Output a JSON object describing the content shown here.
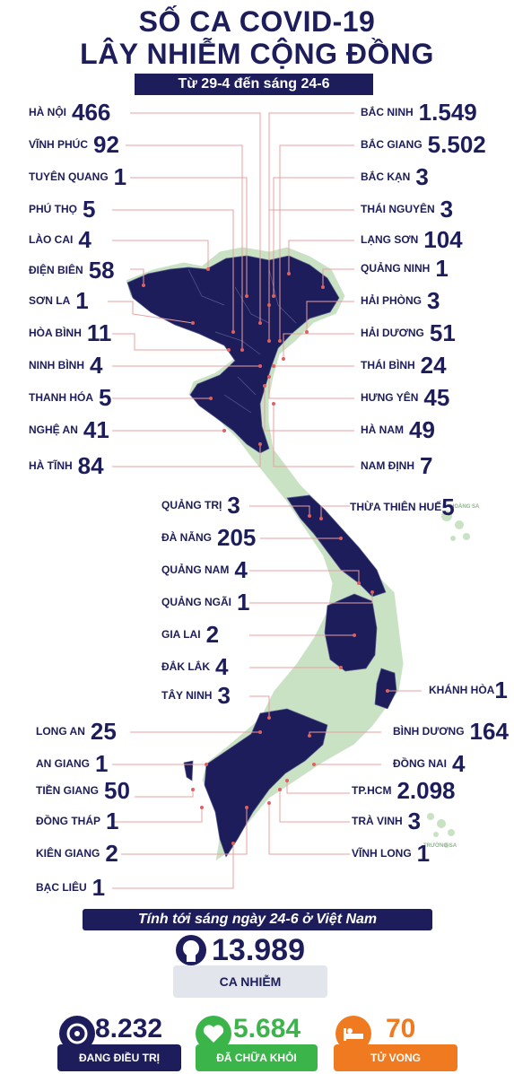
{
  "title_line1": "SỐ CA COVID-19",
  "title_line2": "LÂY NHIỄM CỘNG ĐỒNG",
  "subtitle": "Từ 29-4 đến sáng 24-6",
  "colors": {
    "navy": "#1d1d5b",
    "light_green": "#c9e2c4",
    "orange": "#f07a1f",
    "green": "#3bb54a"
  },
  "left_provinces": [
    {
      "name": "HÀ NỘI",
      "count": "466"
    },
    {
      "name": "VĨNH PHÚC",
      "count": "92"
    },
    {
      "name": "TUYÊN QUANG",
      "count": "1"
    },
    {
      "name": "PHÚ THỌ",
      "count": "5"
    },
    {
      "name": "LÀO CAI",
      "count": "4"
    },
    {
      "name": "ĐIỆN BIÊN",
      "count": "58"
    },
    {
      "name": "SƠN LA",
      "count": "1"
    },
    {
      "name": "HÒA BÌNH",
      "count": "11"
    },
    {
      "name": "NINH BÌNH",
      "count": "4"
    },
    {
      "name": "THANH HÓA",
      "count": "5"
    },
    {
      "name": "NGHỆ AN",
      "count": "41"
    },
    {
      "name": "HÀ TĨNH",
      "count": "84"
    }
  ],
  "right_provinces": [
    {
      "name": "BẮC NINH",
      "count": "1.549"
    },
    {
      "name": "BẮC GIANG",
      "count": "5.502"
    },
    {
      "name": "BẮC KẠN",
      "count": "3"
    },
    {
      "name": "THÁI NGUYÊN",
      "count": "3"
    },
    {
      "name": "LẠNG SƠN",
      "count": "104"
    },
    {
      "name": "QUẢNG NINH",
      "count": "1"
    },
    {
      "name": "HẢI PHÒNG",
      "count": "3"
    },
    {
      "name": "HẢI DƯƠNG",
      "count": "51"
    },
    {
      "name": "THÁI BÌNH",
      "count": "24"
    },
    {
      "name": "HƯNG YÊN",
      "count": "45"
    },
    {
      "name": "HÀ NAM",
      "count": "49"
    },
    {
      "name": "NAM ĐỊNH",
      "count": "7"
    }
  ],
  "central_provinces": [
    {
      "name": "QUẢNG TRỊ",
      "count": "3"
    },
    {
      "name": "ĐÀ NẴNG",
      "count": "205"
    },
    {
      "name": "QUẢNG NAM",
      "count": "4"
    },
    {
      "name": "QUẢNG NGÃI",
      "count": "1"
    },
    {
      "name": "GIA LAI",
      "count": "2"
    },
    {
      "name": "ĐẮK LẮK",
      "count": "4"
    },
    {
      "name": "TÂY NINH",
      "count": "3"
    }
  ],
  "thua_thien_hue": {
    "name": "THỪA THIÊN HUẾ",
    "count": "5"
  },
  "khanh_hoa": {
    "name": "KHÁNH HÒA",
    "count": "1"
  },
  "south_left": [
    {
      "name": "LONG AN",
      "count": "25"
    },
    {
      "name": "AN GIANG",
      "count": "1"
    },
    {
      "name": "TIỀN GIANG",
      "count": "50"
    },
    {
      "name": "ĐỒNG THÁP",
      "count": "1"
    },
    {
      "name": "KIÊN GIANG",
      "count": "2"
    },
    {
      "name": "BẠC LIÊU",
      "count": "1"
    }
  ],
  "south_right": [
    {
      "name": "BÌNH DƯƠNG",
      "count": "164"
    },
    {
      "name": "ĐỒNG NAI",
      "count": "4"
    },
    {
      "name": "TP.HCM",
      "count": "2.098"
    },
    {
      "name": "TRÀ VINH",
      "count": "3"
    },
    {
      "name": "VĨNH LONG",
      "count": "1"
    }
  ],
  "islands": {
    "hoang_sa": "HOÀNG SA",
    "truong_sa": "TRƯỜNG SA"
  },
  "summary": {
    "banner": "Tính tới sáng ngày 24-6 ở Việt Nam",
    "total": "13.989",
    "total_label": "CA NHIỄM",
    "treating": "8.232",
    "treating_label": "ĐANG ĐIỀU TRỊ",
    "recovered": "5.684",
    "recovered_label": "ĐÃ CHỮA KHỎI",
    "deaths": "70",
    "deaths_label": "TỬ VONG"
  }
}
